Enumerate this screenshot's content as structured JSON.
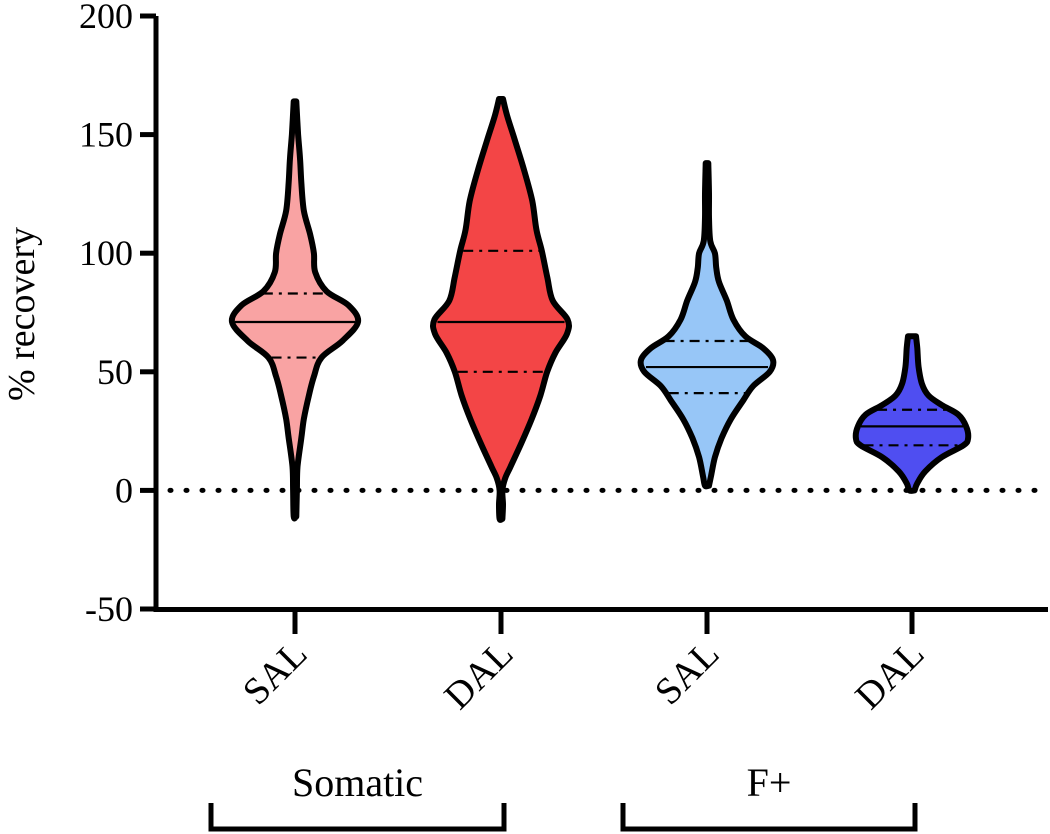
{
  "chart_data": {
    "type": "violin",
    "title": "",
    "ylabel": "% recovery",
    "xlabel": "",
    "ylim": [
      -50,
      200
    ],
    "yticks": [
      -50,
      0,
      50,
      100,
      150,
      200
    ],
    "reference_line": 0,
    "categories": [
      "SAL",
      "DAL",
      "SAL",
      "DAL"
    ],
    "groups": [
      {
        "label": "Somatic",
        "categories": [
          0,
          1
        ]
      },
      {
        "label": "F+",
        "categories": [
          2,
          3
        ]
      }
    ],
    "series": [
      {
        "name": "Somatic SAL",
        "color": "#f9a3a3",
        "median": 71,
        "q1": 56,
        "q3": 83,
        "min": -11,
        "max": 164,
        "profile": [
          [
            -11,
            0.02
          ],
          [
            0,
            0.03
          ],
          [
            10,
            0.04
          ],
          [
            22,
            0.1
          ],
          [
            30,
            0.14
          ],
          [
            40,
            0.22
          ],
          [
            48,
            0.3
          ],
          [
            56,
            0.42
          ],
          [
            63,
            0.75
          ],
          [
            71,
            1.0
          ],
          [
            78,
            0.85
          ],
          [
            84,
            0.5
          ],
          [
            92,
            0.32
          ],
          [
            100,
            0.3
          ],
          [
            108,
            0.24
          ],
          [
            118,
            0.14
          ],
          [
            130,
            0.1
          ],
          [
            140,
            0.08
          ],
          [
            150,
            0.05
          ],
          [
            164,
            0.02
          ]
        ]
      },
      {
        "name": "Somatic DAL",
        "color": "#f34546",
        "median": 71,
        "q1": 50,
        "q3": 101,
        "min": -12,
        "max": 165,
        "profile": [
          [
            -12,
            0.02
          ],
          [
            -6,
            0.03
          ],
          [
            0,
            0.02
          ],
          [
            5,
            0.06
          ],
          [
            10,
            0.14
          ],
          [
            20,
            0.3
          ],
          [
            30,
            0.45
          ],
          [
            40,
            0.58
          ],
          [
            50,
            0.68
          ],
          [
            58,
            0.8
          ],
          [
            66,
            0.97
          ],
          [
            72,
            0.98
          ],
          [
            80,
            0.76
          ],
          [
            90,
            0.68
          ],
          [
            101,
            0.6
          ],
          [
            110,
            0.52
          ],
          [
            122,
            0.46
          ],
          [
            135,
            0.34
          ],
          [
            148,
            0.2
          ],
          [
            158,
            0.09
          ],
          [
            165,
            0.03
          ]
        ]
      },
      {
        "name": "F+ SAL",
        "color": "#97c6f7",
        "median": 52,
        "q1": 41,
        "q3": 63,
        "min": 2,
        "max": 138,
        "profile": [
          [
            2,
            0.03
          ],
          [
            6,
            0.06
          ],
          [
            14,
            0.12
          ],
          [
            22,
            0.22
          ],
          [
            30,
            0.36
          ],
          [
            38,
            0.55
          ],
          [
            44,
            0.7
          ],
          [
            50,
            0.95
          ],
          [
            55,
            1.0
          ],
          [
            60,
            0.85
          ],
          [
            65,
            0.58
          ],
          [
            72,
            0.4
          ],
          [
            80,
            0.3
          ],
          [
            88,
            0.18
          ],
          [
            94,
            0.14
          ],
          [
            100,
            0.12
          ],
          [
            105,
            0.05
          ],
          [
            115,
            0.03
          ],
          [
            125,
            0.03
          ],
          [
            138,
            0.02
          ]
        ]
      },
      {
        "name": "F+ DAL",
        "color": "#4f4ef1",
        "median": 27,
        "q1": 19,
        "q3": 34,
        "min": 0,
        "max": 65,
        "profile": [
          [
            0,
            0.04
          ],
          [
            3,
            0.08
          ],
          [
            8,
            0.2
          ],
          [
            14,
            0.45
          ],
          [
            19,
            0.78
          ],
          [
            22,
            0.85
          ],
          [
            27,
            0.82
          ],
          [
            32,
            0.7
          ],
          [
            36,
            0.45
          ],
          [
            40,
            0.25
          ],
          [
            45,
            0.15
          ],
          [
            52,
            0.1
          ],
          [
            60,
            0.08
          ],
          [
            65,
            0.06
          ]
        ]
      }
    ]
  }
}
